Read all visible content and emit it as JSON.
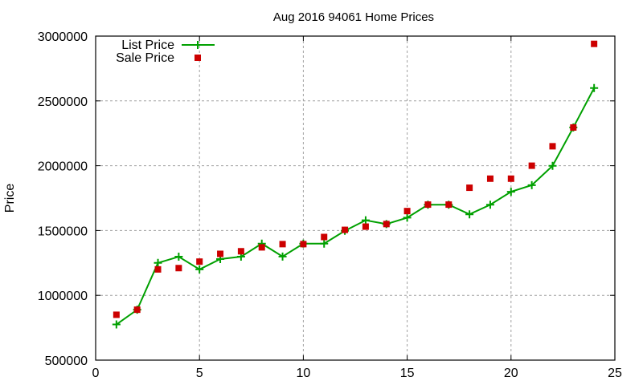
{
  "chart_data": {
    "type": "line",
    "title": "Aug 2016 94061 Home Prices",
    "xlabel": "",
    "ylabel": "Price",
    "xlim": [
      0,
      25
    ],
    "ylim": [
      500000,
      3000000
    ],
    "xticks": [
      0,
      5,
      10,
      15,
      20,
      25
    ],
    "yticks": [
      500000,
      1000000,
      1500000,
      2000000,
      2500000,
      3000000
    ],
    "grid": true,
    "legend_position": "top-left",
    "x": [
      1,
      2,
      3,
      4,
      5,
      6,
      7,
      8,
      9,
      10,
      11,
      12,
      13,
      14,
      15,
      16,
      17,
      18,
      19,
      20,
      21,
      22,
      23,
      24
    ],
    "series": [
      {
        "name": "List Price",
        "style": "linespoints",
        "marker": "plus",
        "color": "#00a000",
        "values": [
          775000,
          889000,
          1250000,
          1298000,
          1200000,
          1280000,
          1298000,
          1399000,
          1299000,
          1399000,
          1399000,
          1498000,
          1579000,
          1550000,
          1599000,
          1699000,
          1699000,
          1625000,
          1699000,
          1799000,
          1850000,
          1999000,
          2295000,
          2599000
        ]
      },
      {
        "name": "Sale Price",
        "style": "points",
        "marker": "square",
        "color": "#cc0000",
        "values": [
          850000,
          889000,
          1200000,
          1210000,
          1260000,
          1320000,
          1340000,
          1370000,
          1395000,
          1395000,
          1450000,
          1505000,
          1530000,
          1550000,
          1650000,
          1700000,
          1700000,
          1830000,
          1900000,
          1900000,
          2000000,
          2150000,
          2295000,
          2940000
        ]
      }
    ]
  }
}
